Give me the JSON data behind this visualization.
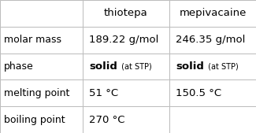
{
  "columns": [
    "",
    "thiotepa",
    "mepivacaine"
  ],
  "rows": [
    [
      "molar mass",
      "189.22 g/mol",
      "246.35 g/mol"
    ],
    [
      "phase",
      [
        "solid",
        " (at STP)"
      ],
      [
        "solid",
        " (at STP)"
      ]
    ],
    [
      "melting point",
      "51 °C",
      "150.5 °C"
    ],
    [
      "boiling point",
      "270 °C",
      ""
    ]
  ],
  "cell_bg": "#ffffff",
  "border_color": "#bbbbbb",
  "text_color": "#000000",
  "header_fontsize": 9.5,
  "cell_fontsize": 9.5,
  "small_fontsize": 7,
  "row_label_fontsize": 9
}
